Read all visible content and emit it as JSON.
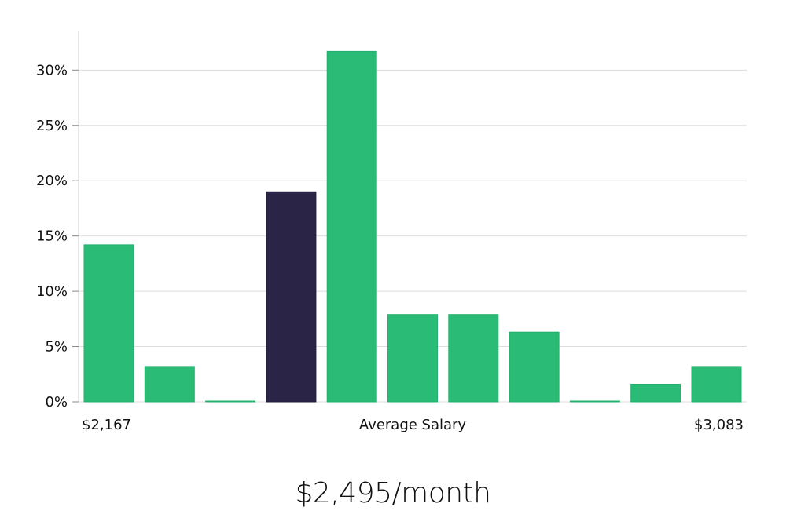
{
  "chart_data": {
    "type": "bar",
    "categories": [
      "1",
      "2",
      "3",
      "4",
      "5",
      "6",
      "7",
      "8",
      "9",
      "10",
      "11"
    ],
    "values": [
      14.2,
      3.2,
      0.05,
      19.0,
      31.7,
      7.9,
      7.9,
      6.3,
      0.05,
      1.6,
      3.2
    ],
    "highlight_index": 3,
    "y_unit": "%",
    "ylim": [
      0,
      33.5
    ],
    "yticks": [
      0,
      5,
      10,
      15,
      20,
      25,
      30
    ],
    "ytick_labels": [
      "0%",
      "5%",
      "10%",
      "15%",
      "20%",
      "25%",
      "30%"
    ],
    "grid": true,
    "x_labels": {
      "left": "$2,167",
      "center": "Average Salary",
      "right": "$3,083"
    },
    "colors": {
      "bar": "#2abb76",
      "highlight": "#2a2546",
      "grid": "#dddddd",
      "axis": "#cccccc"
    }
  },
  "caption": "$2,495/month"
}
